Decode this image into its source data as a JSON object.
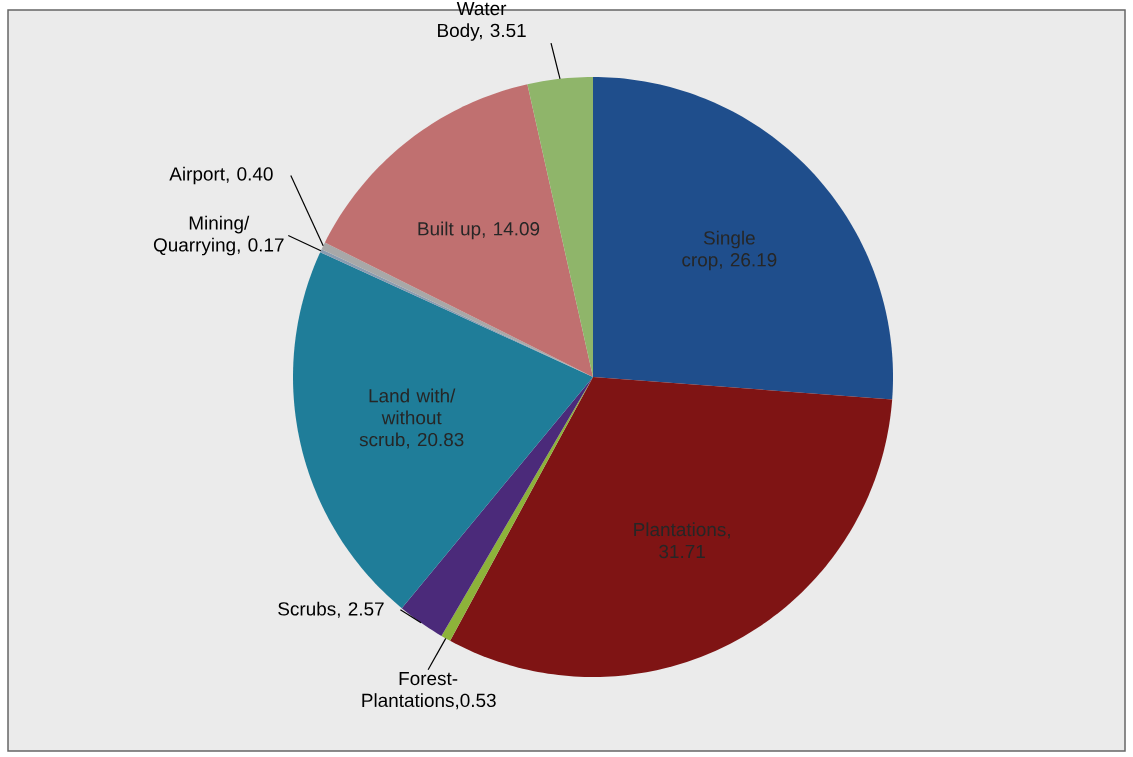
{
  "chart_data": {
    "type": "pie",
    "categories": [
      "Single crop, 26.19",
      "Plantations, 31.71",
      "Forest-Plantations,0.53",
      "Scrubs, 2.57",
      "Land with/ without scrub, 20.83",
      "Mining/ Quarrying, 0.17",
      "Airport, 0.40",
      "Built up, 14.09",
      "Water Body, 3.51"
    ],
    "values": [
      26.19,
      31.71,
      0.53,
      2.57,
      20.83,
      0.17,
      0.4,
      14.09,
      3.51
    ],
    "colors": [
      "#1f4e8c",
      "#7f1414",
      "#8db33a",
      "#4b2a7a",
      "#1f7d99",
      "#8a9cb0",
      "#a8a8a8",
      "#c07070",
      "#8fb56a"
    ]
  }
}
